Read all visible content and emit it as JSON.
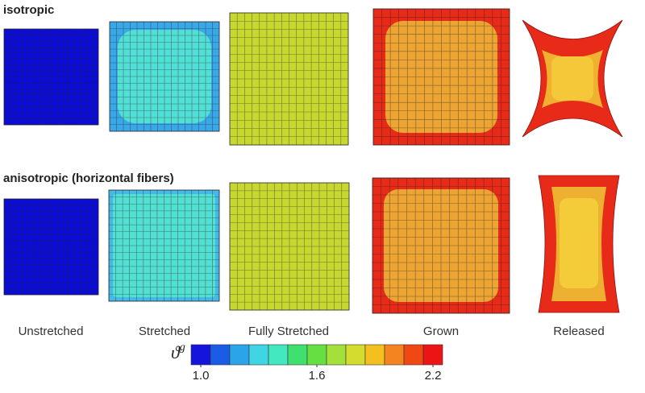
{
  "rows": [
    {
      "title": "isotropic"
    },
    {
      "title": "anisotropic (horizontal fibers)"
    }
  ],
  "columns": [
    "Unstretched",
    "Stretched",
    "Fully Stretched",
    "Grown",
    "Released"
  ],
  "colorbar": {
    "symbol": "ϑ",
    "superscript": "g",
    "lim": [
      1.0,
      2.2
    ],
    "ticks": [
      {
        "value": 1.0,
        "label": "1.0"
      },
      {
        "value": 1.6,
        "label": "1.6"
      },
      {
        "value": 2.2,
        "label": "2.2"
      }
    ],
    "colors": [
      "#1414dc",
      "#1a5ce6",
      "#2ca4ea",
      "#40d4e4",
      "#44e8c0",
      "#40e070",
      "#66e040",
      "#a4e03c",
      "#d4dc30",
      "#f4c020",
      "#f48420",
      "#f04814",
      "#ec1414"
    ]
  }
}
